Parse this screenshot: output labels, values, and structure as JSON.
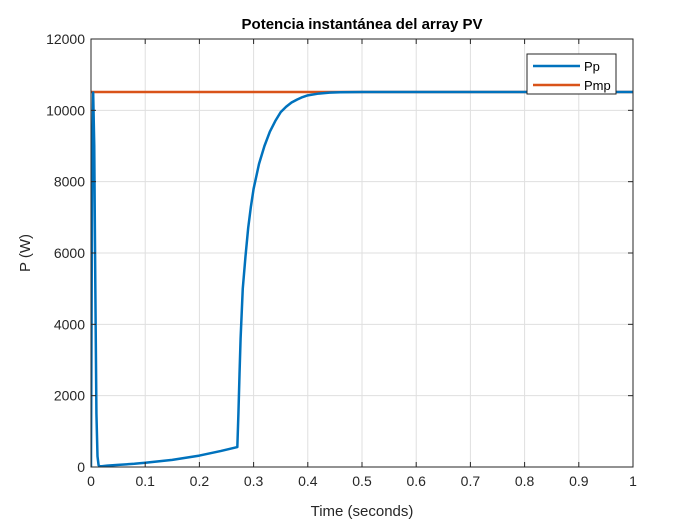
{
  "chart_data": {
    "type": "line",
    "title": "Potencia instantánea del array PV",
    "xlabel": "Time (seconds)",
    "ylabel": "P (W)",
    "xlim": [
      0,
      1
    ],
    "ylim": [
      0,
      12000
    ],
    "xticks": [
      0,
      0.1,
      0.2,
      0.3,
      0.4,
      0.5,
      0.6,
      0.7,
      0.8,
      0.9,
      1
    ],
    "xtick_labels": [
      "0",
      "0.1",
      "0.2",
      "0.3",
      "0.4",
      "0.5",
      "0.6",
      "0.7",
      "0.8",
      "0.9",
      "1"
    ],
    "yticks": [
      0,
      2000,
      4000,
      6000,
      8000,
      10000,
      12000
    ],
    "ytick_labels": [
      "0",
      "2000",
      "4000",
      "6000",
      "8000",
      "10000",
      "12000"
    ],
    "grid": true,
    "legend_position": "top-right",
    "series": [
      {
        "name": "Pp",
        "color": "#0072BD",
        "x": [
          0,
          0.002,
          0.004,
          0.006,
          0.008,
          0.01,
          0.012,
          0.014,
          0.016,
          0.02,
          0.03,
          0.05,
          0.08,
          0.1,
          0.15,
          0.2,
          0.24,
          0.27,
          0.272,
          0.274,
          0.276,
          0.28,
          0.285,
          0.29,
          0.295,
          0.3,
          0.31,
          0.32,
          0.33,
          0.34,
          0.35,
          0.36,
          0.37,
          0.38,
          0.39,
          0.4,
          0.42,
          0.44,
          0.46,
          0.48,
          0.5,
          0.6,
          0.7,
          0.8,
          0.9,
          1.0
        ],
        "y": [
          0,
          8000,
          10500,
          9000,
          5000,
          1500,
          300,
          50,
          20,
          20,
          40,
          60,
          90,
          120,
          200,
          320,
          450,
          560,
          1500,
          2600,
          3600,
          5000,
          5900,
          6700,
          7300,
          7800,
          8500,
          9000,
          9400,
          9700,
          9950,
          10100,
          10220,
          10300,
          10370,
          10420,
          10470,
          10495,
          10508,
          10512,
          10515,
          10515,
          10515,
          10515,
          10515,
          10515
        ]
      },
      {
        "name": "Pmp",
        "color": "#D95319",
        "x": [
          0,
          1
        ],
        "y": [
          10515,
          10515
        ]
      }
    ]
  }
}
